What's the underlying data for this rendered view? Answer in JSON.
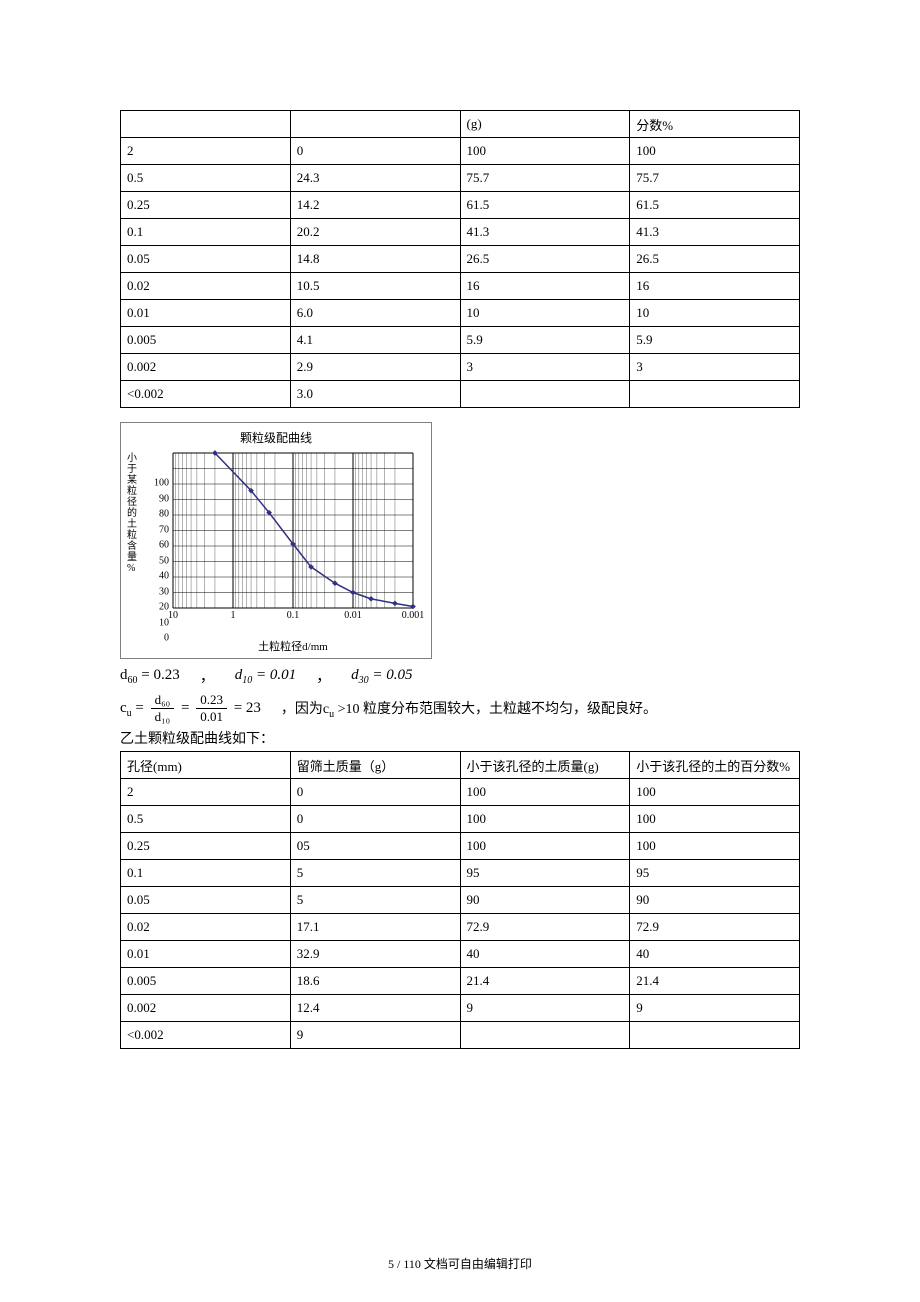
{
  "table1": {
    "headers_partial": [
      "",
      "",
      "(g)",
      "分数%"
    ],
    "col_widths": [
      "25%",
      "25%",
      "25%",
      "25%"
    ],
    "rows": [
      [
        "2",
        "0",
        "100",
        "100"
      ],
      [
        "0.5",
        "24.3",
        "75.7",
        "75.7"
      ],
      [
        "0.25",
        "14.2",
        "61.5",
        "61.5"
      ],
      [
        "0.1",
        "20.2",
        "41.3",
        "41.3"
      ],
      [
        "0.05",
        "14.8",
        "26.5",
        "26.5"
      ],
      [
        "0.02",
        "10.5",
        "16",
        "16"
      ],
      [
        "0.01",
        "6.0",
        "10",
        "10"
      ],
      [
        "0.005",
        "4.1",
        "5.9",
        "5.9"
      ],
      [
        "0.002",
        "2.9",
        "3",
        "3"
      ],
      [
        "<0.002",
        "3.0",
        "",
        ""
      ]
    ]
  },
  "chart": {
    "title": "颗粒级配曲线",
    "xlabel": "土粒粒径d/mm",
    "ylabel_chars": "小于某粒径的土粒含量%",
    "border_color": "#808080",
    "grid_color": "#000000",
    "line_color": "#303080",
    "marker_color": "#303080",
    "background": "#ffffff",
    "x_log_min": 0.001,
    "x_log_max": 10,
    "x_ticks": [
      10,
      1,
      0.1,
      0.01,
      0.001
    ],
    "y_min": 0,
    "y_max": 100,
    "y_ticks": [
      0,
      10,
      20,
      30,
      40,
      50,
      60,
      70,
      80,
      90,
      100
    ],
    "points": [
      {
        "x": 2,
        "y": 100
      },
      {
        "x": 0.5,
        "y": 75.7
      },
      {
        "x": 0.25,
        "y": 61.5
      },
      {
        "x": 0.1,
        "y": 41.3
      },
      {
        "x": 0.05,
        "y": 26.5
      },
      {
        "x": 0.02,
        "y": 16
      },
      {
        "x": 0.01,
        "y": 10
      },
      {
        "x": 0.005,
        "y": 5.9
      },
      {
        "x": 0.002,
        "y": 3
      },
      {
        "x": 0.001,
        "y": 1
      }
    ]
  },
  "formulas": {
    "d60_label": "d",
    "d60_sub": "60",
    "d60_val": " = 0.23",
    "d10_label": "d",
    "d10_sub": "10",
    "d10_val": " = 0.01",
    "d30_label": "d",
    "d30_sub": "30",
    "d30_val": " = 0.05",
    "comma": "，",
    "cu_label": "c",
    "cu_sub": "u",
    "cu_frac_num1": "d₆₀",
    "cu_frac_den1": "d₁₀",
    "cu_frac_num2": "0.23",
    "cu_frac_den2": "0.01",
    "cu_result": " = 23",
    "tail_text": "，因为",
    "cu_sym_label": "c",
    "cu_sym_sub": "u",
    "tail_text2": " >10 粒度分布范围较大，土粒越不均匀，级配良好。"
  },
  "line_before_table2": "乙土颗粒级配曲线如下：",
  "table2": {
    "headers": [
      "孔径(mm)",
      "留筛土质量（g）",
      "小于该孔径的土质量(g)",
      "小于该孔径的土的百分数%"
    ],
    "rows": [
      [
        "2",
        "0",
        "100",
        "100"
      ],
      [
        "0.5",
        "0",
        "100",
        "100"
      ],
      [
        "0.25",
        "05",
        "100",
        "100"
      ],
      [
        "0.1",
        "5",
        "95",
        "95"
      ],
      [
        "0.05",
        "5",
        "90",
        "90"
      ],
      [
        "0.02",
        "17.1",
        "72.9",
        "72.9"
      ],
      [
        "0.01",
        "32.9",
        "40",
        "40"
      ],
      [
        "0.005",
        "18.6",
        "21.4",
        "21.4"
      ],
      [
        "0.002",
        "12.4",
        "9",
        "9"
      ],
      [
        "<0.002",
        "9",
        "",
        ""
      ]
    ]
  },
  "footer": "5 / 110 文档可自由编辑打印"
}
